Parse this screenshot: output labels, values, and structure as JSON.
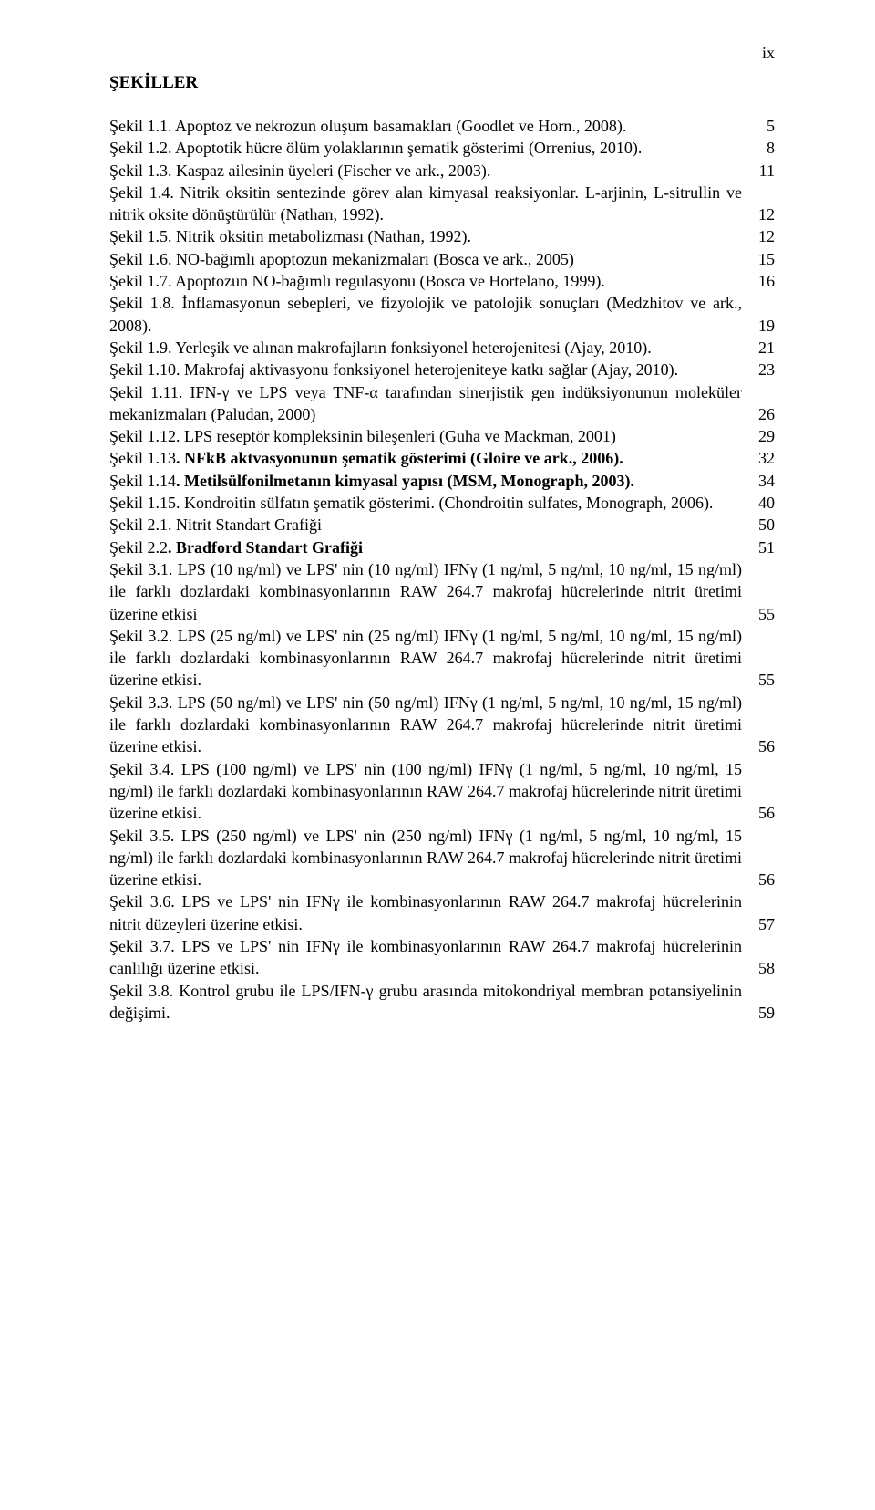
{
  "page_number_label": "ix",
  "heading": "ŞEKİLLER",
  "entries": [
    {
      "text": "Şekil 1.1. Apoptoz ve nekrozun oluşum basamakları (Goodlet ve Horn., 2008).",
      "page": "5"
    },
    {
      "text": "Şekil 1.2. Apoptotik hücre ölüm yolaklarının şematik gösterimi (Orrenius, 2010).",
      "page": "8"
    },
    {
      "text": "Şekil 1.3. Kaspaz ailesinin üyeleri (Fischer ve ark., 2003).",
      "page": "11"
    },
    {
      "text": "Şekil 1.4. Nitrik oksitin sentezinde görev alan kimyasal reaksiyonlar. L-arjinin, L-sitrullin ve nitrik oksite dönüştürülür (Nathan, 1992).",
      "page": "12"
    },
    {
      "text": "Şekil 1.5. Nitrik oksitin metabolizması (Nathan, 1992).",
      "page": "12"
    },
    {
      "text": "Şekil 1.6. NO-bağımlı apoptozun mekanizmaları (Bosca ve ark., 2005)",
      "page": "15"
    },
    {
      "text": "Şekil 1.7. Apoptozun NO-bağımlı regulasyonu (Bosca ve Hortelano, 1999).",
      "page": "16"
    },
    {
      "text": "Şekil 1.8. İnflamasyonun sebepleri, ve fizyolojik ve patolojik sonuçları (Medzhitov ve ark., 2008).",
      "page": "19"
    },
    {
      "text": "Şekil 1.9. Yerleşik ve alınan makrofajların fonksiyonel heterojenitesi (Ajay, 2010).",
      "page": "21"
    },
    {
      "text": "Şekil 1.10. Makrofaj aktivasyonu fonksiyonel heterojeniteye katkı sağlar (Ajay, 2010).",
      "page": "23"
    },
    {
      "text": "Şekil 1.11. IFN-γ ve LPS veya TNF-α tarafından sinerjistik gen indüksiyonunun moleküler mekanizmaları (Paludan, 2000)",
      "page": "26"
    },
    {
      "text": "Şekil 1.12. LPS reseptör kompleksinin bileşenleri (Guha ve Mackman, 2001)",
      "page": "29"
    },
    {
      "text": "Şekil 1.13. NFkB aktvasyonunun şematik gösterimi (Gloire ve ark., 2006).",
      "page": "32",
      "bold_after": "Şekil 1.13"
    },
    {
      "text": "Şekil 1.14. Metilsülfonilmetanın kimyasal yapısı (MSM, Monograph, 2003).",
      "page": "34",
      "bold_after": "Şekil 1.14"
    },
    {
      "text": "Şekil 1.15. Kondroitin sülfatın şematik gösterimi. (Chondroitin sulfates, Monograph, 2006).",
      "page": "40"
    },
    {
      "text": "Şekil 2.1.  Nitrit Standart Grafiği",
      "page": "50"
    },
    {
      "text": "Şekil 2.2. Bradford Standart Grafiği",
      "page": "51",
      "bold_after": "Şekil 2.2"
    },
    {
      "text": "Şekil 3.1. LPS (10 ng/ml) ve LPS' nin (10 ng/ml)  IFNγ (1 ng/ml, 5 ng/ml, 10 ng/ml, 15 ng/ml) ile farklı dozlardaki kombinasyonlarının RAW 264.7 makrofaj hücrelerinde nitrit üretimi üzerine etkisi",
      "page": "55"
    },
    {
      "text": "Şekil 3.2. LPS (25 ng/ml) ve LPS' nin (25 ng/ml) IFNγ (1 ng/ml, 5 ng/ml, 10 ng/ml, 15 ng/ml) ile farklı dozlardaki kombinasyonlarının RAW 264.7 makrofaj hücrelerinde nitrit üretimi üzerine etkisi.",
      "page": "55"
    },
    {
      "text": "Şekil 3.3. LPS (50 ng/ml) ve LPS' nin (50 ng/ml) IFNγ (1 ng/ml, 5 ng/ml, 10 ng/ml, 15 ng/ml) ile farklı dozlardaki kombinasyonlarının RAW 264.7 makrofaj hücrelerinde nitrit üretimi üzerine etkisi.",
      "page": "56"
    },
    {
      "text": "Şekil 3.4. LPS (100 ng/ml) ve LPS' nin (100 ng/ml) IFNγ (1 ng/ml, 5 ng/ml, 10 ng/ml, 15 ng/ml) ile farklı dozlardaki kombinasyonlarının RAW 264.7 makrofaj hücrelerinde nitrit üretimi üzerine etkisi.",
      "page": "56"
    },
    {
      "text": "Şekil 3.5. LPS (250 ng/ml) ve LPS' nin (250 ng/ml) IFNγ (1 ng/ml, 5 ng/ml, 10 ng/ml, 15 ng/ml) ile farklı dozlardaki kombinasyonlarının RAW 264.7 makrofaj hücrelerinde nitrit üretimi üzerine etkisi.",
      "page": "56"
    },
    {
      "text": "Şekil 3.6. LPS ve LPS' nin IFNγ ile kombinasyonlarının RAW 264.7 makrofaj hücrelerinin nitrit düzeyleri üzerine etkisi.",
      "page": "57"
    },
    {
      "text": "Şekil 3.7. LPS ve LPS' nin IFNγ ile kombinasyonlarının RAW 264.7 makrofaj hücrelerinin canlılığı üzerine etkisi.",
      "page": "58"
    },
    {
      "text": "Şekil 3.8. Kontrol grubu ile LPS/IFN-γ grubu arasında mitokondriyal membran potansiyelinin değişimi.",
      "page": "59"
    }
  ]
}
